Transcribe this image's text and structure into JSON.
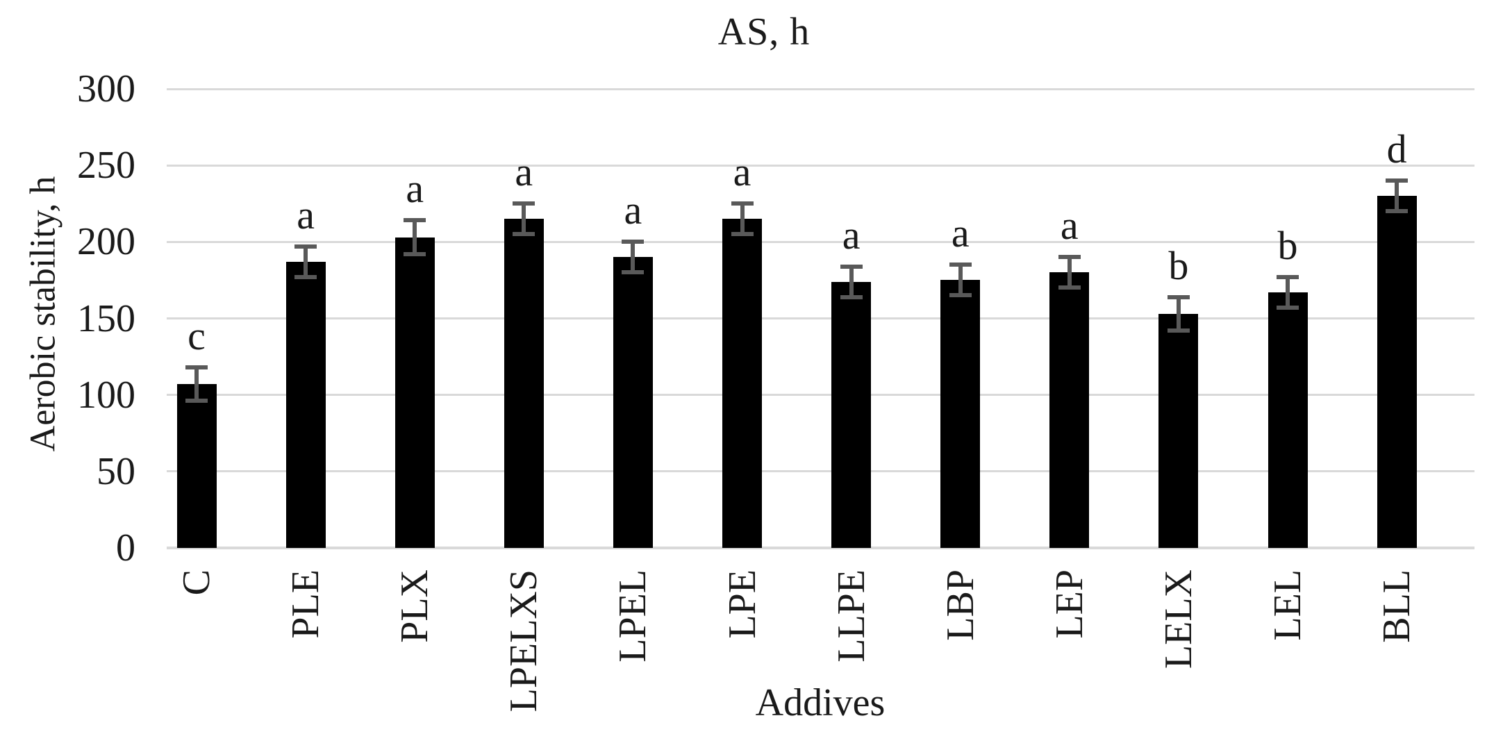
{
  "title": "AS, h",
  "chart_data": {
    "type": "bar",
    "title": "AS, h",
    "xlabel": "Addives",
    "ylabel": "Aerobic stability, h",
    "ylim": [
      0,
      300
    ],
    "ytick_step": 50,
    "yticks": [
      300,
      250,
      200,
      150,
      100,
      50,
      0
    ],
    "grid": true,
    "legend": "none",
    "bar_color": "#000000",
    "error_bar_color": "#595959",
    "gridline_color": "#d9d9d9",
    "categories": [
      "C",
      "PLE",
      "PLX",
      "LPELXS",
      "LPEL",
      "LPE",
      "LLPE",
      "LBP",
      "LEP",
      "LELX",
      "LEL",
      "BLL"
    ],
    "values": [
      107,
      187,
      203,
      215,
      190,
      215,
      174,
      175,
      180,
      153,
      167,
      230
    ],
    "errors": [
      11,
      10,
      11,
      10,
      10,
      10,
      10,
      10,
      10,
      11,
      10,
      10
    ],
    "sig_letters": [
      "c",
      "a",
      "a",
      "a",
      "a",
      "a",
      "a",
      "a",
      "a",
      "b",
      "b",
      "d"
    ]
  }
}
